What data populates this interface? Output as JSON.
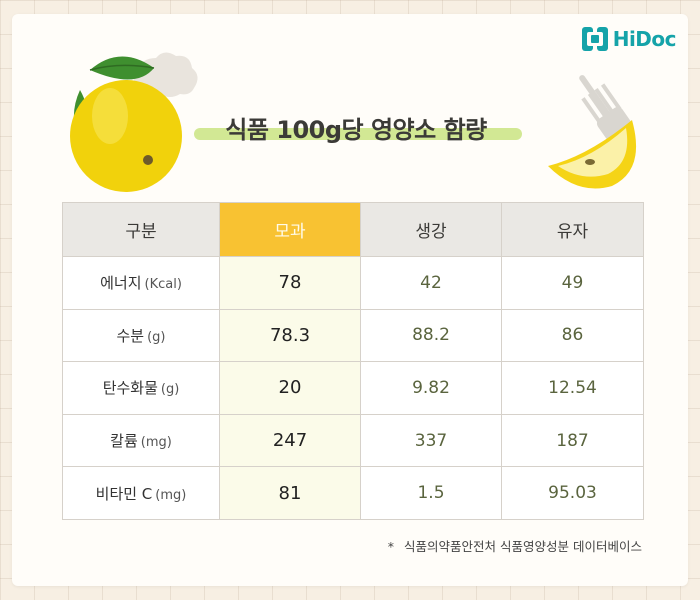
{
  "brand": {
    "name": "HiDoc",
    "color": "#15a3a9"
  },
  "title": "식품 100g당 영양소 함량",
  "table": {
    "headers": [
      "구분",
      "모과",
      "생강",
      "유자"
    ],
    "highlight_color": "#f8c232",
    "rows": [
      {
        "name": "에너지",
        "unit": "(Kcal)",
        "values": [
          "78",
          "42",
          "49"
        ]
      },
      {
        "name": "수분",
        "unit": "(g)",
        "values": [
          "78.3",
          "88.2",
          "86"
        ]
      },
      {
        "name": "탄수화물",
        "unit": "(g)",
        "values": [
          "20",
          "9.82",
          "12.54"
        ]
      },
      {
        "name": "칼륨",
        "unit": "(mg)",
        "values": [
          "247",
          "337",
          "187"
        ]
      },
      {
        "name": "비타민 C",
        "unit": "(mg)",
        "values": [
          "81",
          "1.5",
          "95.03"
        ]
      }
    ]
  },
  "source": {
    "marker": "*",
    "text": "식품의약품안전처 식품영양성분 데이터베이스"
  },
  "illustrations": [
    "quince-fruit-illustration",
    "quince-slice-on-fork-illustration"
  ]
}
